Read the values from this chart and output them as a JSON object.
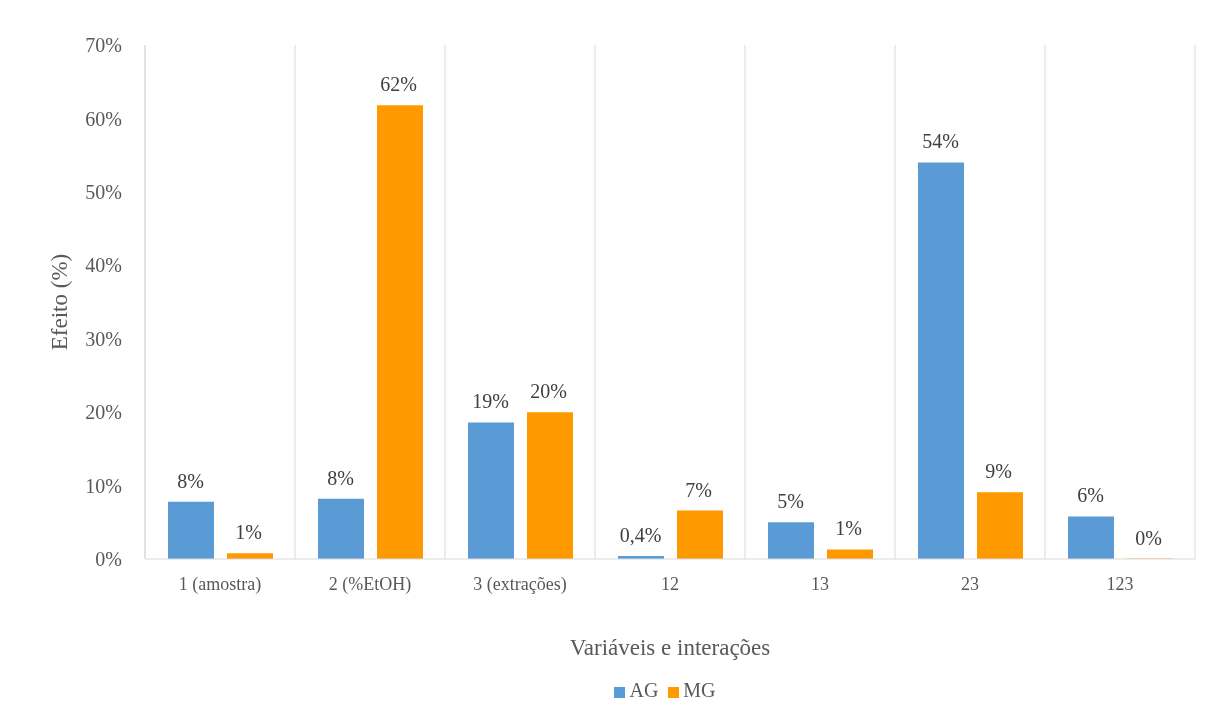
{
  "chart_data": {
    "type": "bar",
    "xlabel": "Variáveis e interações",
    "ylabel": "Efeito (%)",
    "categories": [
      "1 (amostra)",
      "2 (%EtOH)",
      "3 (extrações)",
      "12",
      "13",
      "23",
      "123"
    ],
    "series": [
      {
        "name": "AG",
        "color": "#5b9bd5",
        "values": [
          7.8,
          8.2,
          18.6,
          0.4,
          5.0,
          54.0,
          5.8
        ],
        "value_labels": [
          "8%",
          "8%",
          "19%",
          "0,4%",
          "5%",
          "54%",
          "6%"
        ]
      },
      {
        "name": "MG",
        "color": "#ff9900",
        "values": [
          0.8,
          61.8,
          20.0,
          6.6,
          1.3,
          9.1,
          0
        ],
        "value_labels": [
          "1%",
          "62%",
          "20%",
          "7%",
          "1%",
          "9%",
          "0%"
        ]
      }
    ],
    "ylim": [
      0,
      70
    ],
    "yticks": [
      {
        "value": 0,
        "label": "0%"
      },
      {
        "value": 10,
        "label": "10%"
      },
      {
        "value": 20,
        "label": "20%"
      },
      {
        "value": 30,
        "label": "30%"
      },
      {
        "value": 40,
        "label": "40%"
      },
      {
        "value": 50,
        "label": "50%"
      },
      {
        "value": 60,
        "label": "60%"
      },
      {
        "value": 70,
        "label": "70%"
      }
    ],
    "grid": "x",
    "legend": "bottom"
  }
}
